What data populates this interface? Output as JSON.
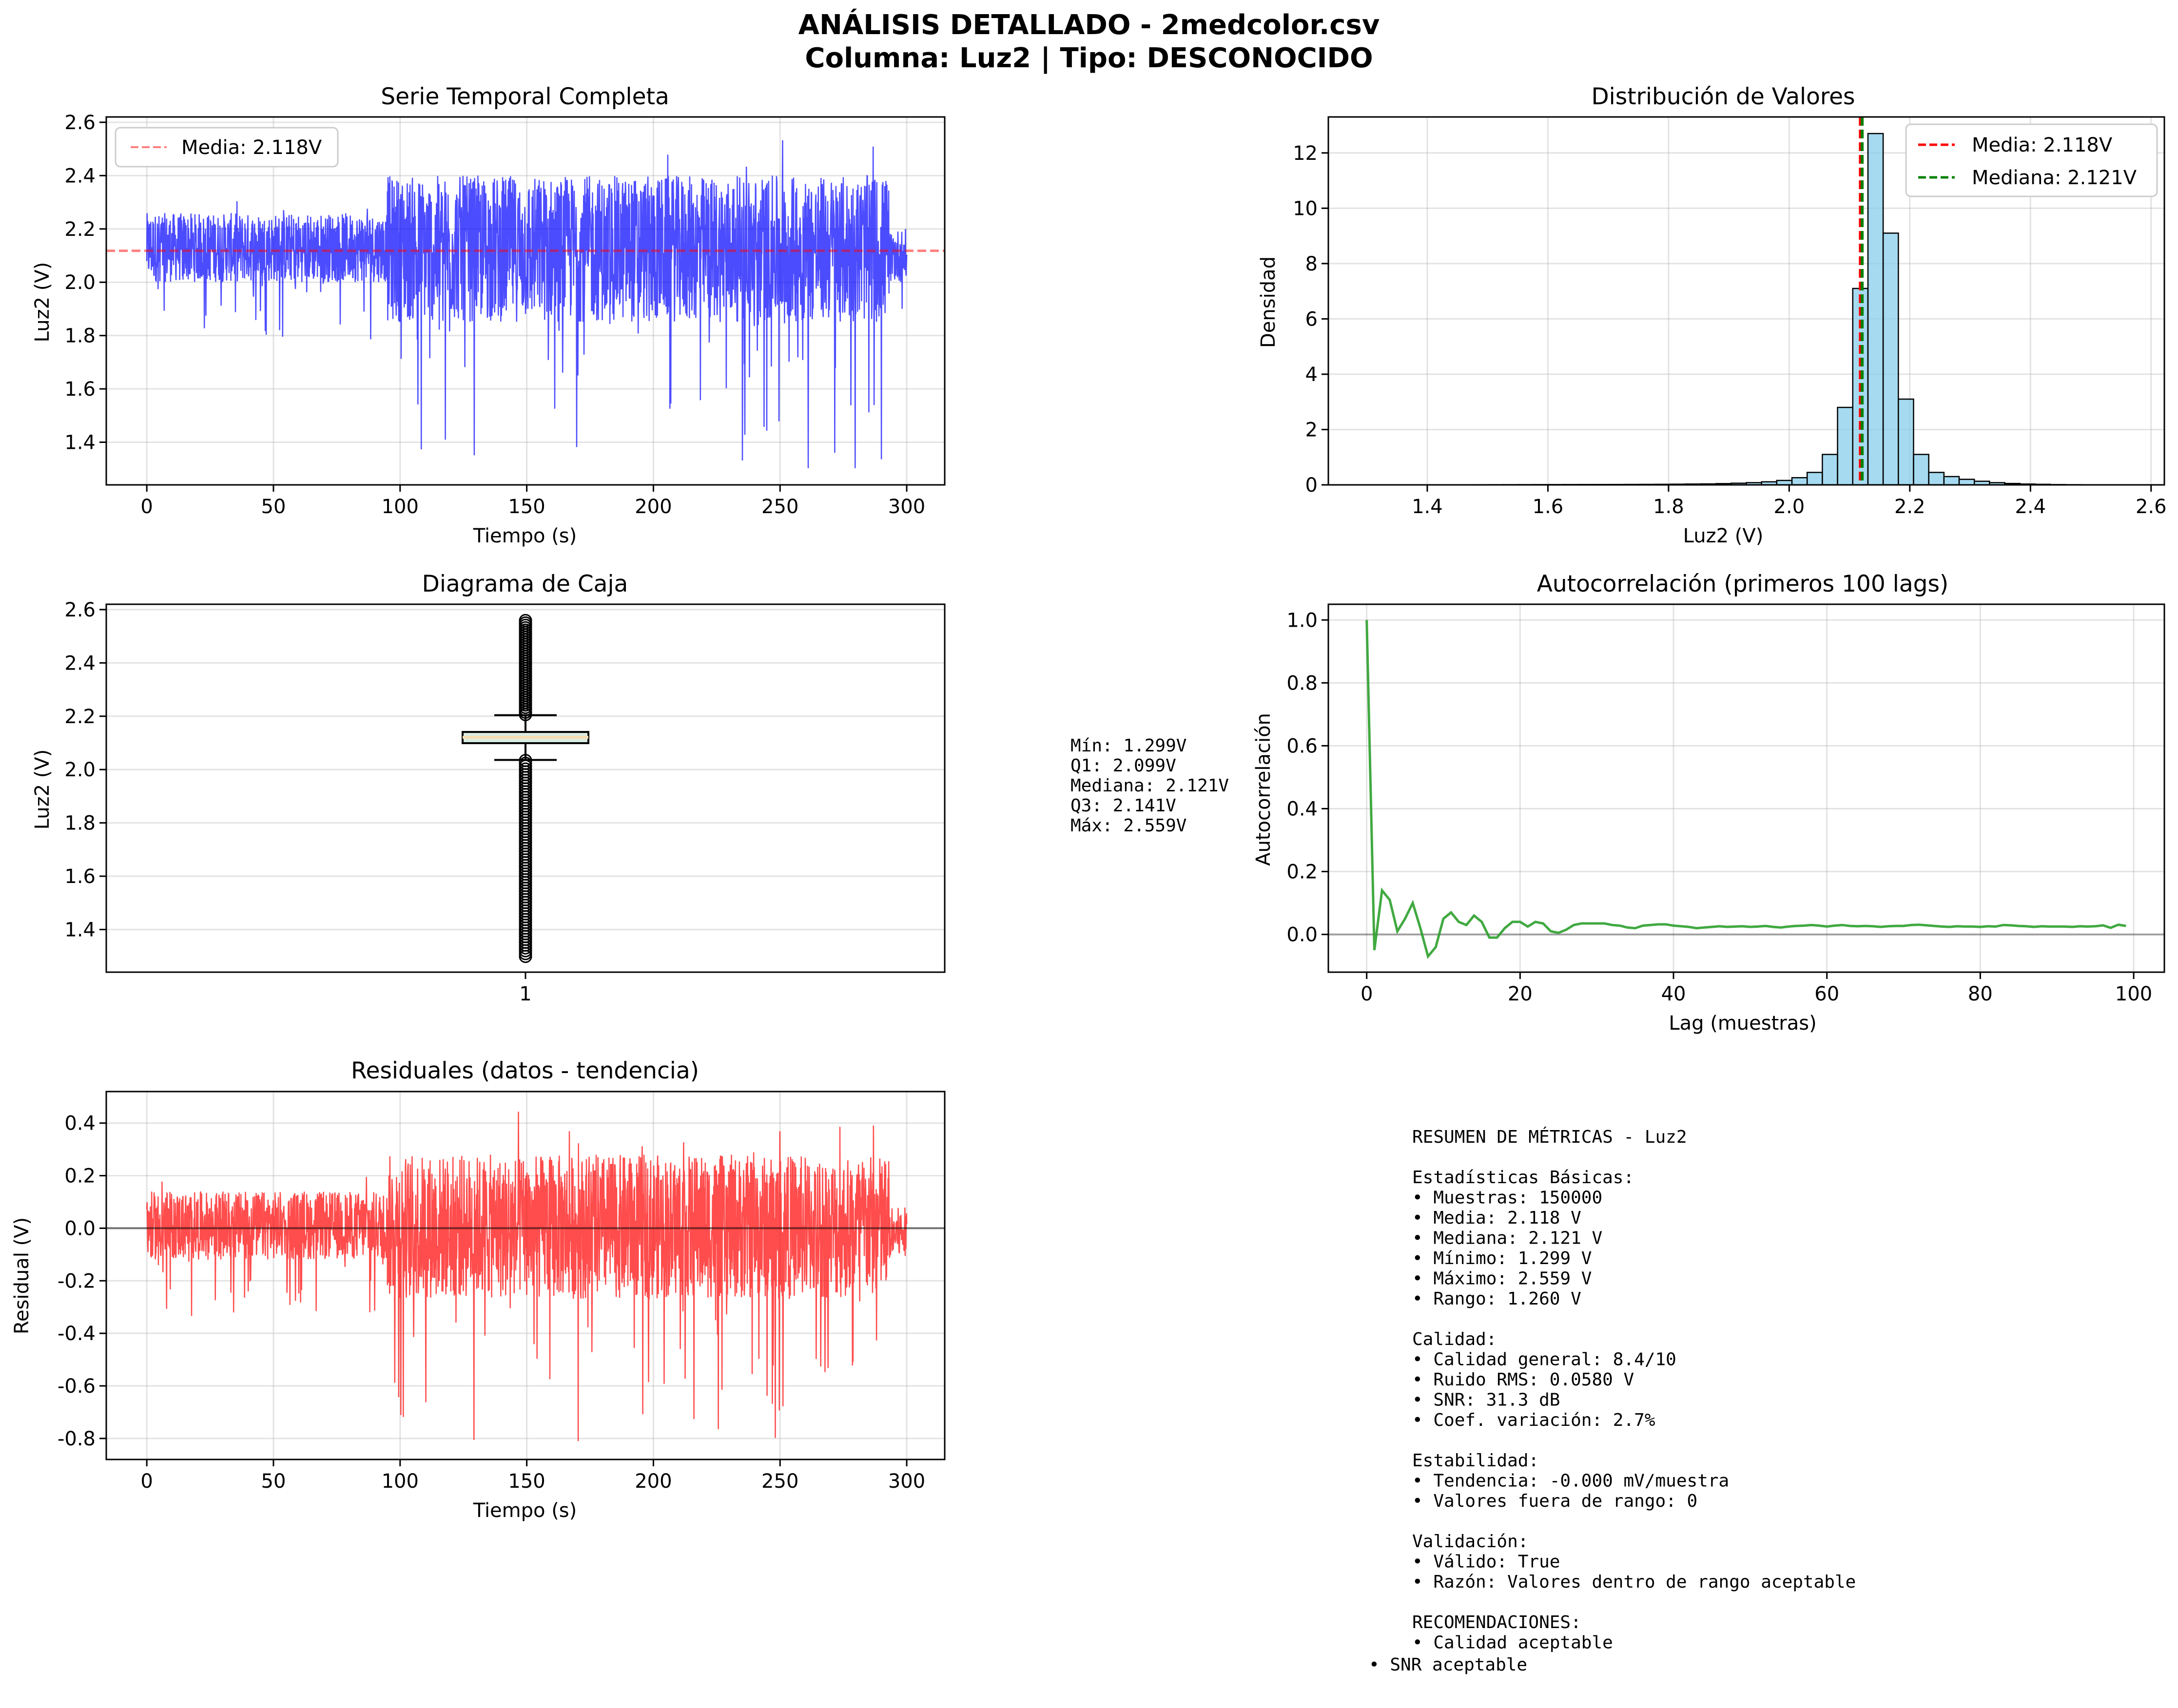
{
  "figure": {
    "title_line1": "ANÁLISIS DETALLADO - 2medcolor.csv",
    "title_line2": "Columna: Luz2 | Tipo: DESCONOCIDO"
  },
  "colors": {
    "series_blue": "#0000ff",
    "mean_red": "#ff0000",
    "median_green": "#008000",
    "hist_fill": "#87ceeb",
    "acf_green": "#2ca02c",
    "box_median": "#f5deb3"
  },
  "chart_data": [
    {
      "id": "time_series",
      "type": "line",
      "title": "Serie Temporal Completa",
      "xlabel": "Tiempo (s)",
      "ylabel": "Luz2 (V)",
      "xlim": [
        -16,
        315
      ],
      "ylim": [
        1.24,
        2.62
      ],
      "xticks": [
        0,
        50,
        100,
        150,
        200,
        250,
        300
      ],
      "yticks": [
        1.4,
        1.6,
        1.8,
        2.0,
        2.2,
        2.4,
        2.6
      ],
      "grid": true,
      "legend": "top-left",
      "series": [
        {
          "name": "Media: 2.118V",
          "style": "dashed",
          "value": 2.118
        },
        {
          "segments": [
            {
              "x": [
                0,
                95
              ],
              "typical_range": [
                2.0,
                2.26
              ],
              "extreme_range": [
                1.78,
                2.31
              ]
            },
            {
              "x": [
                95,
                293
              ],
              "typical_range": [
                1.85,
                2.4
              ],
              "extreme_range": [
                1.3,
                2.56
              ]
            },
            {
              "x": [
                293,
                300
              ],
              "typical_range": [
                2.0,
                2.2
              ],
              "extreme_range": [
                1.84,
                2.26
              ]
            }
          ]
        }
      ]
    },
    {
      "id": "histogram",
      "type": "bar",
      "title": "Distribución de Valores",
      "xlabel": "Luz2 (V)",
      "ylabel": "Densidad",
      "xlim": [
        1.236,
        2.622
      ],
      "ylim": [
        0,
        13.3
      ],
      "xticks": [
        1.4,
        1.6,
        1.8,
        2.0,
        2.2,
        2.4,
        2.6
      ],
      "yticks": [
        0,
        2,
        4,
        6,
        8,
        10,
        12
      ],
      "grid": true,
      "legend": "top-right",
      "bin_start": 1.299,
      "bin_width": 0.0252,
      "values": [
        0.001,
        0.001,
        0.002,
        0.002,
        0.002,
        0.003,
        0.004,
        0.005,
        0.006,
        0.007,
        0.008,
        0.009,
        0.01,
        0.011,
        0.012,
        0.013,
        0.014,
        0.016,
        0.018,
        0.02,
        0.025,
        0.03,
        0.035,
        0.045,
        0.06,
        0.08,
        0.11,
        0.16,
        0.26,
        0.45,
        1.1,
        2.8,
        7.1,
        12.7,
        9.1,
        3.1,
        1.1,
        0.45,
        0.3,
        0.2,
        0.13,
        0.08,
        0.05,
        0.03,
        0.02,
        0.01,
        0.006,
        0.004,
        0.002,
        0.001
      ],
      "series": [
        {
          "name": "Media: 2.118V",
          "value": 2.118
        },
        {
          "name": "Mediana: 2.121V",
          "value": 2.121
        }
      ]
    },
    {
      "id": "boxplot",
      "type": "box",
      "title": "Diagrama de Caja",
      "ylabel": "Luz2 (V)",
      "categories": [
        "1"
      ],
      "ylim": [
        1.24,
        2.62
      ],
      "yticks": [
        1.4,
        1.6,
        1.8,
        2.0,
        2.2,
        2.4,
        2.6
      ],
      "grid": true,
      "q1": 2.099,
      "median": 2.121,
      "q3": 2.141,
      "whisker_low": 2.036,
      "whisker_high": 2.204,
      "outliers_low": [
        1.299,
        2.034
      ],
      "outliers_high": [
        2.206,
        2.559
      ]
    },
    {
      "id": "autocorrelation",
      "type": "line",
      "title": "Autocorrelación (primeros 100 lags)",
      "xlabel": "Lag (muestras)",
      "ylabel": "Autocorrelación",
      "xlim": [
        -5,
        104
      ],
      "ylim": [
        -0.12,
        1.05
      ],
      "xticks": [
        0,
        20,
        40,
        60,
        80,
        100
      ],
      "yticks": [
        0.0,
        0.2,
        0.4,
        0.6,
        0.8,
        1.0
      ],
      "grid": true,
      "values": [
        1.0,
        -0.05,
        0.14,
        0.11,
        0.01,
        0.05,
        0.1,
        0.02,
        -0.07,
        -0.04,
        0.05,
        0.07,
        0.04,
        0.03,
        0.06,
        0.04,
        -0.01,
        -0.01,
        0.02,
        0.04,
        0.04,
        0.025,
        0.04,
        0.035,
        0.01,
        0.005,
        0.015,
        0.03,
        0.035,
        0.035,
        0.035,
        0.035,
        0.03,
        0.028,
        0.022,
        0.02,
        0.028,
        0.03,
        0.032,
        0.032,
        0.028,
        0.026,
        0.024,
        0.02,
        0.022,
        0.024,
        0.026,
        0.024,
        0.025,
        0.026,
        0.024,
        0.025,
        0.027,
        0.024,
        0.022,
        0.025,
        0.027,
        0.028,
        0.03,
        0.028,
        0.025,
        0.028,
        0.03,
        0.027,
        0.026,
        0.027,
        0.026,
        0.024,
        0.026,
        0.027,
        0.027,
        0.03,
        0.031,
        0.029,
        0.027,
        0.025,
        0.024,
        0.026,
        0.025,
        0.025,
        0.024,
        0.026,
        0.025,
        0.03,
        0.029,
        0.027,
        0.026,
        0.024,
        0.026,
        0.025,
        0.025,
        0.025,
        0.024,
        0.026,
        0.025,
        0.026,
        0.029,
        0.021,
        0.031,
        0.027
      ]
    },
    {
      "id": "residuals",
      "type": "line",
      "title": "Residuales (datos - tendencia)",
      "xlabel": "Tiempo (s)",
      "ylabel": "Residual (V)",
      "xlim": [
        -16,
        315
      ],
      "ylim": [
        -0.88,
        0.52
      ],
      "xticks": [
        0,
        50,
        100,
        150,
        200,
        250,
        300
      ],
      "yticks": [
        -0.8,
        -0.6,
        -0.4,
        -0.2,
        0.0,
        0.2,
        0.4
      ],
      "grid": true,
      "series": [
        {
          "segments": [
            {
              "x": [
                0,
                95
              ],
              "typical_range": [
                -0.12,
                0.14
              ],
              "extreme_range": [
                -0.36,
                0.26
              ]
            },
            {
              "x": [
                95,
                293
              ],
              "typical_range": [
                -0.27,
                0.28
              ],
              "extreme_range": [
                -0.82,
                0.45
              ]
            },
            {
              "x": [
                293,
                300
              ],
              "typical_range": [
                -0.12,
                0.08
              ],
              "extreme_range": [
                -0.28,
                0.14
              ]
            }
          ]
        }
      ]
    }
  ],
  "box_stats_text": [
    "Mín: 1.299V",
    "Q1: 2.099V",
    "Mediana: 2.121V",
    "Q3: 2.141V",
    "Máx: 2.559V"
  ],
  "summary_text": [
    "RESUMEN DE MÉTRICAS - Luz2",
    "",
    "Estadísticas Básicas:",
    "• Muestras: 150000",
    "• Media: 2.118 V",
    "• Mediana: 2.121 V",
    "• Mínimo: 1.299 V",
    "• Máximo: 2.559 V",
    "• Rango: 1.260 V",
    "",
    "Calidad:",
    "• Calidad general: 8.4/10",
    "• Ruido RMS: 0.0580 V",
    "• SNR: 31.3 dB",
    "• Coef. variación: 2.7%",
    "",
    "Estabilidad:",
    "• Tendencia: -0.000 mV/muestra",
    "• Valores fuera de rango: 0",
    "",
    "Validación:",
    "• Válido: True",
    "• Razón: Valores dentro de rango aceptable",
    "",
    "RECOMENDACIONES:",
    "• Calidad aceptable"
  ],
  "summary_last_line": "• SNR aceptable"
}
